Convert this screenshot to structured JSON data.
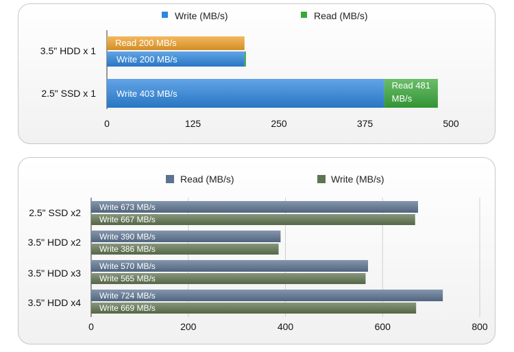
{
  "chart_data": [
    {
      "type": "bar",
      "orientation": "horizontal",
      "categories": [
        "3.5\" HDD x 1",
        "2.5\" SSD x 1"
      ],
      "legend": [
        "Write (MB/s)",
        "Read (MB/s)"
      ],
      "legend_placement": "top",
      "xlim": [
        0,
        500
      ],
      "xticks": [
        "0",
        "125",
        "250",
        "375",
        "500"
      ],
      "grid": false,
      "series": [
        {
          "name": "Write (MB/s)",
          "values": [
            200,
            403
          ],
          "color": "#2e86de"
        },
        {
          "name": "Read (MB/s)",
          "values": [
            200,
            481
          ],
          "color": "#39a83a"
        }
      ],
      "hdd_read_bar_color": "#f0a02a",
      "bar_labels": {
        "hdd_read": "Read 200 MB/s",
        "hdd_write": "Write 200 MB/s",
        "ssd_write": "Write 403 MB/s",
        "ssd_read_line1": "Read 481",
        "ssd_read_line2": "MB/s"
      }
    },
    {
      "type": "bar",
      "orientation": "horizontal",
      "categories": [
        "2.5\" SSD x2",
        "3.5\" HDD x2",
        "3.5\" HDD x3",
        "3.5\" HDD x4"
      ],
      "legend": [
        "Read (MB/s)",
        "Write (MB/s)"
      ],
      "legend_placement": "top",
      "xlim": [
        0,
        800
      ],
      "xticks": [
        "0",
        "200",
        "400",
        "600",
        "800"
      ],
      "grid": true,
      "series": [
        {
          "name": "Read (MB/s)",
          "values": [
            673,
            390,
            570,
            724
          ],
          "color": "#5b7390"
        },
        {
          "name": "Write (MB/s)",
          "values": [
            667,
            386,
            565,
            669
          ],
          "color": "#5f7450"
        }
      ],
      "bar_labels": [
        [
          "Write 673 MB/s",
          "Write 667 MB/s"
        ],
        [
          "Write 390 MB/s",
          "Write 386 MB/s"
        ],
        [
          "Write 570 MB/s",
          "Write 565 MB/s"
        ],
        [
          "Write 724 MB/s",
          "Write 669 MB/s"
        ]
      ]
    }
  ]
}
